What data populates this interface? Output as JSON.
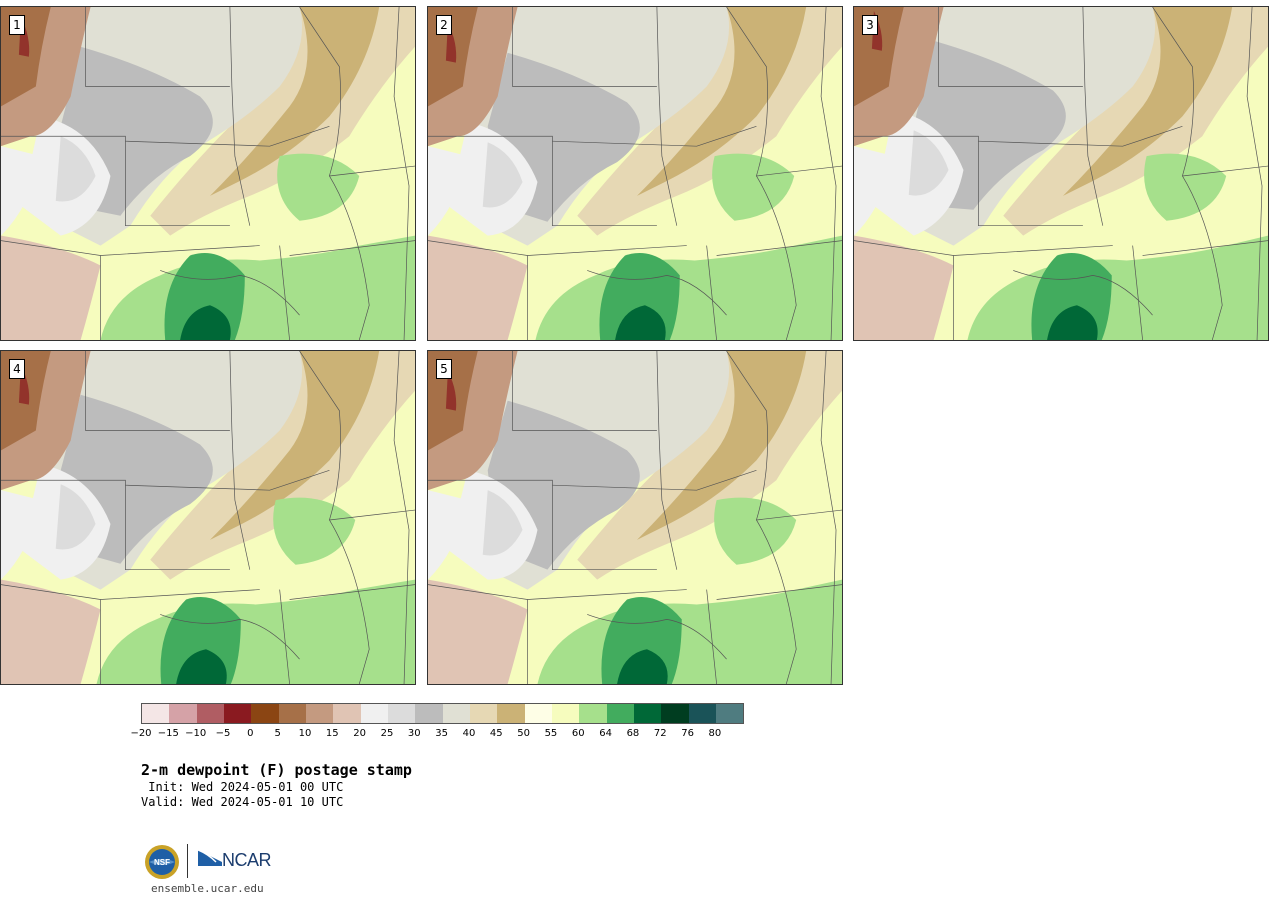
{
  "panels": [
    {
      "label": "1",
      "variant": 0
    },
    {
      "label": "2",
      "variant": 1
    },
    {
      "label": "3",
      "variant": 2
    },
    {
      "label": "4",
      "variant": 3
    },
    {
      "label": "5",
      "variant": 4
    }
  ],
  "colorbar": {
    "colors": [
      "#f4e6e6",
      "#d5a2a7",
      "#b05d63",
      "#8a1a20",
      "#8b4513",
      "#a67048",
      "#c49a80",
      "#e0c4b4",
      "#f0f0f0",
      "#dcdcdc",
      "#bcbcbc",
      "#e0e0d4",
      "#e6d8b4",
      "#cbb276",
      "#fefee6",
      "#f6fcbe",
      "#a6e08c",
      "#42ac5e",
      "#006837",
      "#003d20",
      "#1a5358",
      "#4f7c80"
    ],
    "ticks": [
      "−20",
      "−15",
      "−10",
      "−5",
      "0",
      "5",
      "10",
      "15",
      "20",
      "25",
      "30",
      "35",
      "40",
      "45",
      "50",
      "55",
      "60",
      "64",
      "68",
      "72",
      "76",
      "80"
    ]
  },
  "title": "2-m dewpoint (F) postage stamp",
  "init_text": " Init: Wed 2024-05-01 00 UTC",
  "valid_text": "Valid: Wed 2024-05-01 10 UTC",
  "logos": {
    "nsf": "NSF",
    "ncar": "NCAR"
  },
  "site_url": "ensemble.ucar.edu"
}
